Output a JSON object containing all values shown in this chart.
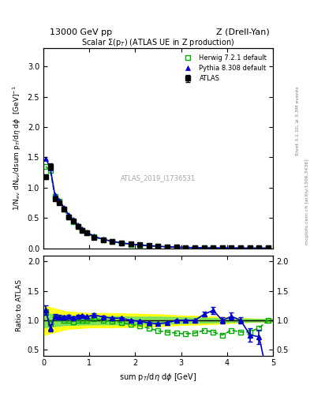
{
  "title_top": "13000 GeV pp",
  "title_right": "Z (Drell-Yan)",
  "plot_title": "Scalar Σ(p_T) (ATLAS UE in Z production)",
  "ylabel_main": "1/N_ev dN_ev/dsum p_T/dη dϕ  [GeV]⁻¹",
  "ylabel_ratio": "Ratio to ATLAS",
  "xlabel": "sum p_T/dη dϕ [GeV]",
  "watermark": "ATLAS_2019_I1736531",
  "rivet_label": "Rivet 3.1.10, ≥ 3.3M events",
  "mcplots_label": "mcplots.cern.ch [arXiv:1306.3436]",
  "atlas_x": [
    0.05,
    0.15,
    0.25,
    0.35,
    0.45,
    0.55,
    0.65,
    0.75,
    0.85,
    0.95,
    1.1,
    1.3,
    1.5,
    1.7,
    1.9,
    2.1,
    2.3,
    2.5,
    2.7,
    2.9,
    3.1,
    3.3,
    3.5,
    3.7,
    3.9,
    4.1,
    4.3,
    4.5,
    4.7,
    4.9
  ],
  "atlas_y": [
    1.18,
    1.35,
    0.82,
    0.75,
    0.64,
    0.52,
    0.45,
    0.36,
    0.3,
    0.25,
    0.18,
    0.14,
    0.11,
    0.085,
    0.068,
    0.055,
    0.044,
    0.034,
    0.025,
    0.018,
    0.013,
    0.009,
    0.006,
    0.005,
    0.004,
    0.003,
    0.0025,
    0.002,
    0.0015,
    0.001
  ],
  "atlas_yerr": [
    0.04,
    0.05,
    0.03,
    0.03,
    0.02,
    0.02,
    0.015,
    0.012,
    0.01,
    0.008,
    0.006,
    0.005,
    0.004,
    0.003,
    0.002,
    0.002,
    0.002,
    0.001,
    0.001,
    0.001,
    0.001,
    0.001,
    0.0005,
    0.0005,
    0.0004,
    0.0003,
    0.0002,
    0.0002,
    0.0002,
    0.0001
  ],
  "herwig_x": [
    0.05,
    0.15,
    0.25,
    0.35,
    0.45,
    0.55,
    0.65,
    0.75,
    0.85,
    0.95,
    1.1,
    1.3,
    1.5,
    1.7,
    1.9,
    2.1,
    2.3,
    2.5,
    2.7,
    2.9,
    3.1,
    3.3,
    3.5,
    3.7,
    3.9,
    4.1,
    4.3,
    4.5,
    4.7,
    4.9
  ],
  "herwig_y": [
    1.35,
    1.28,
    0.86,
    0.78,
    0.64,
    0.52,
    0.44,
    0.36,
    0.3,
    0.25,
    0.185,
    0.14,
    0.108,
    0.082,
    0.063,
    0.05,
    0.038,
    0.028,
    0.02,
    0.014,
    0.01,
    0.007,
    0.005,
    0.004,
    0.003,
    0.0025,
    0.002,
    0.0016,
    0.0013,
    0.001
  ],
  "pythia_x": [
    0.05,
    0.15,
    0.25,
    0.35,
    0.45,
    0.55,
    0.65,
    0.75,
    0.85,
    0.95,
    1.1,
    1.3,
    1.5,
    1.7,
    1.9,
    2.1,
    2.3,
    2.5,
    2.7,
    2.9,
    3.1,
    3.3,
    3.5,
    3.7,
    3.9,
    4.1,
    4.3,
    4.5,
    4.7,
    4.9
  ],
  "pythia_y": [
    1.48,
    1.33,
    0.88,
    0.79,
    0.67,
    0.55,
    0.47,
    0.385,
    0.322,
    0.265,
    0.197,
    0.148,
    0.114,
    0.088,
    0.068,
    0.054,
    0.042,
    0.032,
    0.024,
    0.018,
    0.013,
    0.009,
    0.007,
    0.005,
    0.004,
    0.0032,
    0.0025,
    0.002,
    0.0016,
    0.0013
  ],
  "herwig_ratio_x": [
    0.05,
    0.15,
    0.25,
    0.35,
    0.45,
    0.55,
    0.65,
    0.75,
    0.85,
    0.95,
    1.1,
    1.3,
    1.5,
    1.7,
    1.9,
    2.1,
    2.3,
    2.5,
    2.7,
    2.9,
    3.1,
    3.3,
    3.5,
    3.7,
    3.9,
    4.1,
    4.3,
    4.5,
    4.7,
    4.9
  ],
  "herwig_ratio_y": [
    1.14,
    0.95,
    1.05,
    1.04,
    1.0,
    1.0,
    0.978,
    1.0,
    1.0,
    1.0,
    1.03,
    1.0,
    0.98,
    0.965,
    0.926,
    0.91,
    0.864,
    0.82,
    0.8,
    0.78,
    0.77,
    0.78,
    0.83,
    0.8,
    0.75,
    0.83,
    0.8,
    0.8,
    0.87,
    1.0
  ],
  "pythia_ratio_x": [
    0.05,
    0.15,
    0.25,
    0.35,
    0.45,
    0.55,
    0.65,
    0.75,
    0.85,
    0.95,
    1.1,
    1.3,
    1.5,
    1.7,
    1.9,
    2.1,
    2.3,
    2.5,
    2.7,
    2.9,
    3.1,
    3.3,
    3.5,
    3.7,
    3.9,
    4.1,
    4.3,
    4.5,
    4.7,
    4.9
  ],
  "pythia_ratio_y": [
    1.17,
    0.87,
    1.07,
    1.05,
    1.05,
    1.06,
    1.044,
    1.069,
    1.073,
    1.06,
    1.094,
    1.057,
    1.036,
    1.035,
    1.0,
    0.982,
    0.955,
    0.941,
    0.96,
    1.0,
    1.0,
    1.0,
    1.1,
    1.17,
    1.0,
    1.067,
    1.0,
    0.75,
    0.72,
    0.0
  ],
  "pythia_ratio_yerr": [
    0.08,
    0.06,
    0.04,
    0.04,
    0.035,
    0.03,
    0.028,
    0.028,
    0.025,
    0.025,
    0.022,
    0.02,
    0.018,
    0.018,
    0.016,
    0.015,
    0.014,
    0.014,
    0.013,
    0.013,
    0.012,
    0.012,
    0.04,
    0.06,
    0.05,
    0.06,
    0.05,
    0.12,
    0.12,
    0.15
  ],
  "yellow_band_x": [
    0.0,
    0.5,
    1.0,
    1.5,
    2.0,
    2.5,
    3.0,
    3.5,
    4.0,
    4.5,
    5.0
  ],
  "yellow_band_lo": [
    0.75,
    0.85,
    0.88,
    0.88,
    0.89,
    0.9,
    0.92,
    0.93,
    0.95,
    0.97,
    0.98
  ],
  "yellow_band_hi": [
    1.25,
    1.15,
    1.12,
    1.12,
    1.11,
    1.1,
    1.08,
    1.07,
    1.05,
    1.03,
    1.02
  ],
  "green_band_x": [
    0.0,
    0.5,
    1.0,
    1.5,
    2.0,
    2.5,
    3.0,
    3.5,
    4.0,
    4.5,
    5.0
  ],
  "green_band_lo": [
    0.88,
    0.92,
    0.93,
    0.93,
    0.94,
    0.94,
    0.95,
    0.96,
    0.97,
    0.975,
    0.98
  ],
  "green_band_hi": [
    1.12,
    1.08,
    1.07,
    1.07,
    1.06,
    1.06,
    1.05,
    1.04,
    1.03,
    1.025,
    1.02
  ],
  "xlim": [
    0,
    5
  ],
  "ylim_main": [
    0,
    3.3
  ],
  "ylim_ratio": [
    0.4,
    2.1
  ],
  "yticks_main": [
    0,
    0.5,
    1.0,
    1.5,
    2.0,
    2.5,
    3.0
  ],
  "yticks_ratio": [
    0.5,
    1.0,
    1.5,
    2.0
  ],
  "color_atlas": "#000000",
  "color_herwig": "#00aa00",
  "color_pythia": "#0000cc",
  "color_yellow": "#ffff00",
  "color_green": "#00cc00",
  "bg_color": "#ffffff"
}
